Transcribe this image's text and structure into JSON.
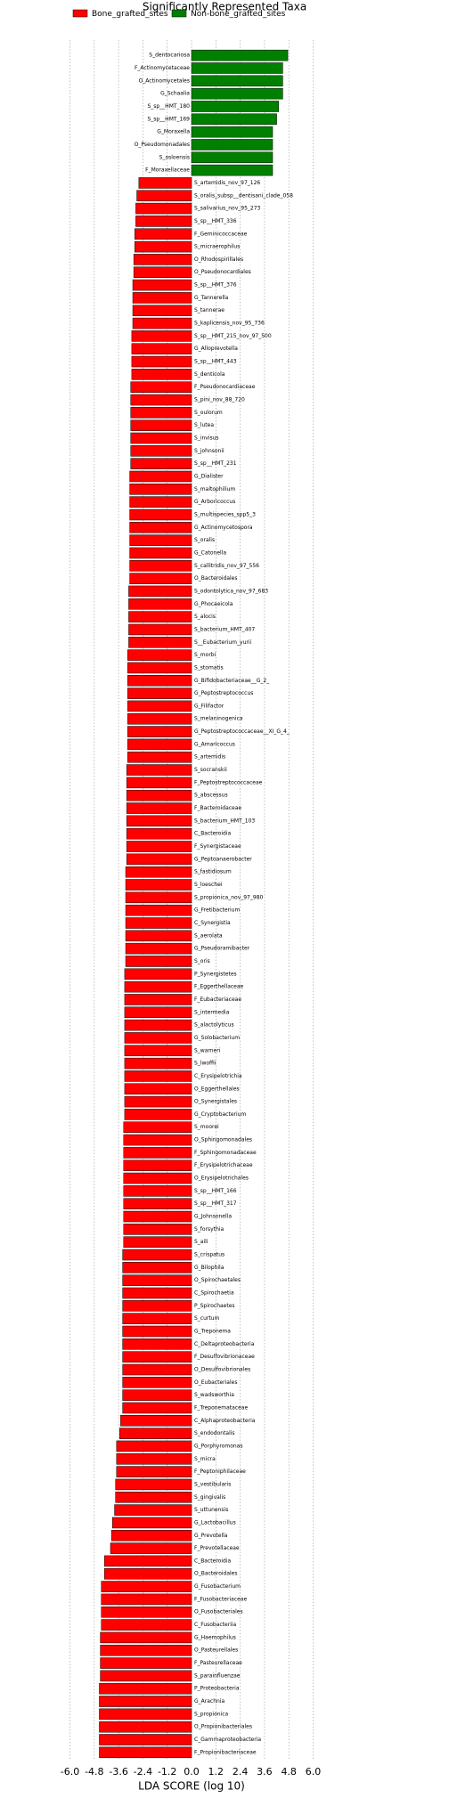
{
  "chart_data": {
    "type": "bar",
    "orientation": "horizontal",
    "title": "Significantly Represented Taxa",
    "xlabel": "LDA SCORE (log 10)",
    "legend": [
      {
        "name": "Bone_grafted_sites",
        "color": "#ff0000"
      },
      {
        "name": "Non-bone_grafted_sites",
        "color": "#008000"
      }
    ],
    "categories": [
      "S_dentocariosa",
      "F_Actinomycetaceae",
      "O_Actinomycetales",
      "G_Schaalia",
      "S_sp__HMT_180",
      "S_sp__HMT_169",
      "G_Moraxella",
      "O_Pseudomonadales",
      "S_osloensis",
      "F_Moraxellaceae",
      "S_artemidis_nov_97_126",
      "S_oralis_subsp__dentisani_clade_058",
      "S_salivarius_nov_95_273",
      "S_sp__HMT_336",
      "F_Geminicoccaceae",
      "S_micraerophilus",
      "O_Rhodospirillales",
      "O_Pseudonocardiales",
      "S_sp__HMT_376",
      "G_Tannerella",
      "S_tannerae",
      "S_kaplicensis_nov_95_736",
      "S_sp__HMT_215_nov_97_500",
      "G_Alloprevotella",
      "S_sp__HMT_443",
      "S_denticola",
      "F_Pseudonocardiaceae",
      "S_pini_nov_88_720",
      "S_oulorum",
      "S_lutea",
      "S_invisus",
      "S_johnsonii",
      "S_sp__HMT_231",
      "G_Dialister",
      "S_maltophilium",
      "G_Arboricoccus",
      "S_multispecies_spp5_3",
      "G_Actinomycetospora",
      "S_oralis",
      "G_Catonella",
      "S_callitridis_nov_97_556",
      "O_Bacteroidales",
      "S_odontolytica_nov_97_683",
      "G_Phocaeicola",
      "S_alocis",
      "S_bacterium_HMT_407",
      "S__Eubacterium_yurii",
      "S_morbi",
      "S_stomatis",
      "G_Bifidobacteriaceae__G_2_",
      "G_Peptostreptococcus",
      "G_Filifactor",
      "S_melaninogenica",
      "G_Peptostreptococcaceae__XI_G_4_",
      "G_Amaricoccus",
      "S_artemidis",
      "S_socranskii",
      "F_Peptostreptococcaceae",
      "S_abscessus",
      "F_Bacteroidaceae",
      "S_bacterium_HMT_103",
      "C_Bacteroidia",
      "F_Synergistaceae",
      "G_Peptoanaerobacter",
      "S_fastidiosum",
      "S_loeschei",
      "S_propionica_nov_97_980",
      "G_Fretibacterium",
      "C_Synergistia",
      "S_aerolata",
      "G_Pseudoramibacter",
      "S_oris",
      "P_Synergistetes",
      "F_Eggerthellaceae",
      "F_Eubacteriaceae",
      "S_intermedia",
      "S_alactolyticus",
      "G_Solobacterium",
      "S_warneri",
      "S_lwoffii",
      "C_Erysipelotrichia",
      "O_Eggerthellales",
      "O_Synergistales",
      "G_Cryptobacterium",
      "S_moorei",
      "O_Sphingomonadales",
      "F_Sphingomonadaceae",
      "F_Erysipelotrichaceae",
      "O_Erysipelotrichales",
      "S_sp__HMT_166",
      "S_sp__HMT_317",
      "G_Johnsonella",
      "S_forsythia",
      "S_aili",
      "S_crispatus",
      "G_Bilophila",
      "O_Spirochaetales",
      "C_Spirochaetia",
      "P_Spirochaetes",
      "S_curtum",
      "G_Treponema",
      "C_Deltaproteobacteria",
      "F_Desulfovibrionaceae",
      "O_Desulfovibrionales",
      "O_Eubacteriales",
      "S_wadsworthia",
      "F_Treponemataceae",
      "C_Alphaproteobacteria",
      "S_endodontalis",
      "G_Porphyromonas",
      "S_micra",
      "F_Peptoniphilaceae",
      "S_vestibularis",
      "S_gingivalis",
      "S_uttunensis",
      "G_Lactobacillus",
      "G_Prevotella",
      "F_Prevotellaceae",
      "C_Bacteroidia",
      "O_Bacteroidales",
      "G_Fusobacterium",
      "F_Fusobacteriaceae",
      "O_Fusobacteriales",
      "C_Fusobacteriia",
      "G_Haemophilus",
      "O_Pasteurellales",
      "F_Pasteurellaceae",
      "S_parainfluenzae",
      "P_Proteobacteria",
      "G_Arachnia",
      "S_propionica",
      "O_Propionibacteriales",
      "C_Gammaproteobacteria",
      "F_Propionibacteriaceae"
    ],
    "values": [
      4.75,
      4.5,
      4.5,
      4.5,
      4.3,
      4.2,
      4.0,
      4.0,
      4.0,
      4.0,
      -2.6,
      -2.7,
      -2.75,
      -2.75,
      -2.8,
      -2.8,
      -2.85,
      -2.85,
      -2.9,
      -2.9,
      -2.9,
      -2.9,
      -2.95,
      -2.95,
      -2.95,
      -2.95,
      -3.0,
      -3.0,
      -3.0,
      -3.0,
      -3.0,
      -3.0,
      -3.0,
      -3.05,
      -3.05,
      -3.05,
      -3.05,
      -3.05,
      -3.05,
      -3.05,
      -3.05,
      -3.05,
      -3.1,
      -3.1,
      -3.1,
      -3.1,
      -3.1,
      -3.15,
      -3.15,
      -3.15,
      -3.15,
      -3.15,
      -3.15,
      -3.15,
      -3.15,
      -3.15,
      -3.2,
      -3.2,
      -3.2,
      -3.2,
      -3.2,
      -3.2,
      -3.2,
      -3.2,
      -3.25,
      -3.25,
      -3.25,
      -3.25,
      -3.25,
      -3.25,
      -3.25,
      -3.25,
      -3.3,
      -3.3,
      -3.3,
      -3.3,
      -3.3,
      -3.3,
      -3.3,
      -3.3,
      -3.3,
      -3.3,
      -3.3,
      -3.3,
      -3.35,
      -3.35,
      -3.35,
      -3.35,
      -3.35,
      -3.35,
      -3.35,
      -3.35,
      -3.35,
      -3.35,
      -3.4,
      -3.4,
      -3.4,
      -3.4,
      -3.4,
      -3.4,
      -3.4,
      -3.4,
      -3.4,
      -3.4,
      -3.4,
      -3.4,
      -3.4,
      -3.5,
      -3.55,
      -3.7,
      -3.7,
      -3.7,
      -3.75,
      -3.75,
      -3.8,
      -3.9,
      -3.95,
      -4.0,
      -4.3,
      -4.3,
      -4.45,
      -4.45,
      -4.45,
      -4.45,
      -4.5,
      -4.5,
      -4.5,
      -4.5,
      -4.55,
      -4.55,
      -4.55,
      -4.55,
      -4.55,
      -4.55
    ],
    "xlim": [
      -6,
      6
    ],
    "xticks": [
      {
        "value": -6,
        "label": "-6.0"
      },
      {
        "value": -4.8,
        "label": "-4.8"
      },
      {
        "value": -3.6,
        "label": "-3.6"
      },
      {
        "value": -2.4,
        "label": "-2.4"
      },
      {
        "value": -1.2,
        "label": "-1.2"
      },
      {
        "value": 0,
        "label": "0.0"
      },
      {
        "value": 1.2,
        "label": "1.2"
      },
      {
        "value": 2.4,
        "label": "2.4"
      },
      {
        "value": 3.6,
        "label": "3.6"
      },
      {
        "value": 4.8,
        "label": "4.8"
      },
      {
        "value": 6,
        "label": "6.0"
      }
    ],
    "grid": true
  }
}
